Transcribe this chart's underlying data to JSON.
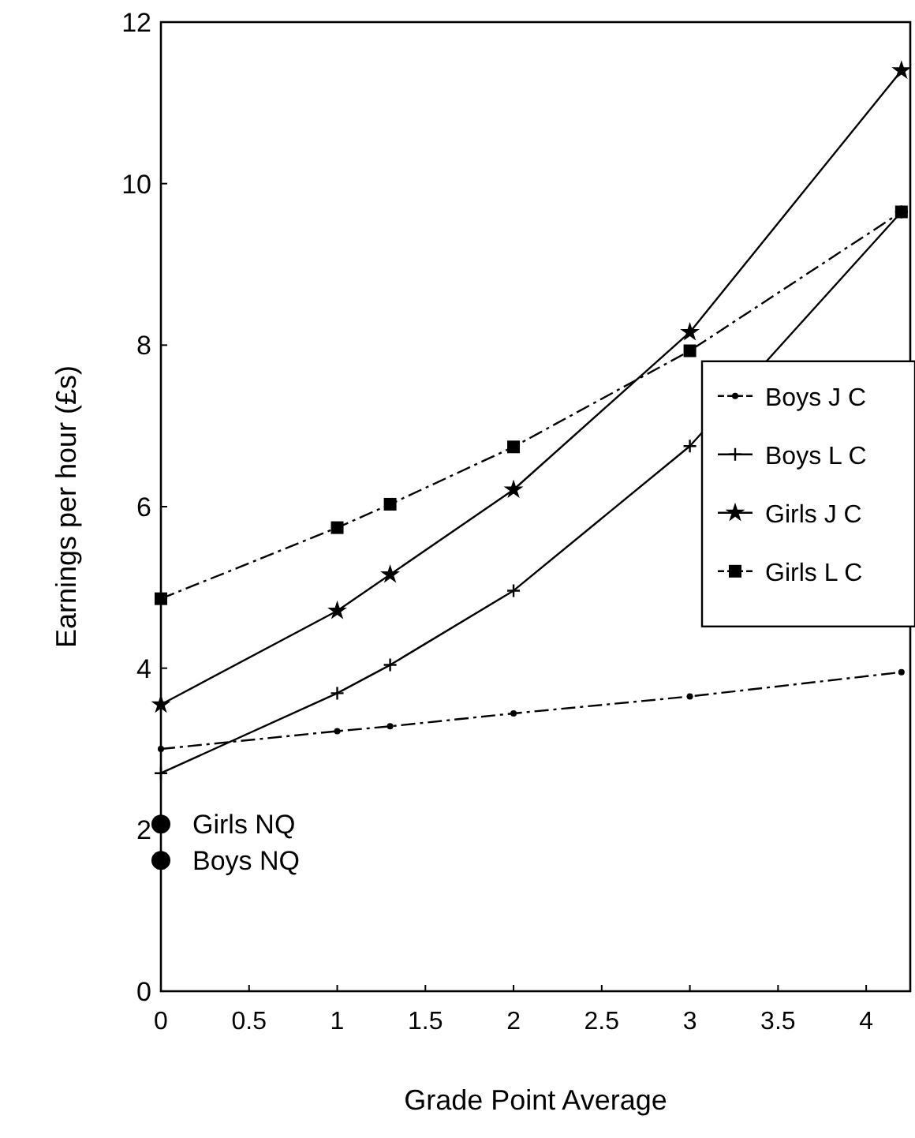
{
  "chart_data": {
    "type": "line",
    "xlabel": "Grade Point Average",
    "ylabel": "Earnings per hour (£s)",
    "xlim": [
      0,
      4.25
    ],
    "ylim": [
      0,
      12
    ],
    "xticks": [
      0,
      0.5,
      1,
      1.5,
      2,
      2.5,
      3,
      3.5,
      4
    ],
    "yticks": [
      0,
      2,
      4,
      6,
      8,
      10,
      12
    ],
    "grid": false,
    "legend": "right",
    "series": [
      {
        "name": "Boys J C",
        "color": "#000000",
        "marker": "circle",
        "line_style": "dashed",
        "x": [
          0,
          1,
          1.3,
          2,
          3,
          4.2
        ],
        "values": [
          3.0,
          3.22,
          3.28,
          3.44,
          3.65,
          3.95
        ]
      },
      {
        "name": "Boys L C",
        "color": "#000000",
        "marker": "cross",
        "line_style": "solid",
        "x": [
          0,
          1,
          1.3,
          2,
          3,
          4.2
        ],
        "values": [
          2.7,
          3.69,
          4.04,
          4.96,
          6.75,
          9.65
        ]
      },
      {
        "name": "Girls J C",
        "color": "#000000",
        "marker": "star",
        "line_style": "solid",
        "x": [
          0,
          1,
          1.3,
          2,
          3,
          4.2
        ],
        "values": [
          3.55,
          4.71,
          5.16,
          6.21,
          8.16,
          11.4
        ]
      },
      {
        "name": "Girls L C",
        "color": "#000000",
        "marker": "square",
        "line_style": "dashed",
        "x": [
          0,
          1,
          1.3,
          2,
          3,
          4.2
        ],
        "values": [
          4.86,
          5.74,
          6.03,
          6.74,
          7.93,
          9.65
        ]
      },
      {
        "name": "Girls NQ",
        "type": "scatter",
        "color": "#000000",
        "marker": "circle",
        "x": [
          0
        ],
        "values": [
          2.07
        ]
      },
      {
        "name": "Boys NQ",
        "type": "scatter",
        "color": "#000000",
        "marker": "circle",
        "x": [
          0
        ],
        "values": [
          1.62
        ]
      }
    ]
  }
}
